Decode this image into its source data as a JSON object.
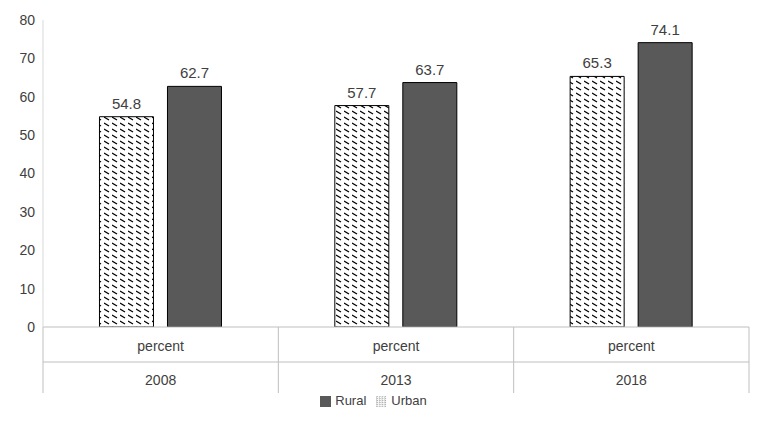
{
  "chart_data": {
    "type": "bar",
    "categories": [
      "2008",
      "2013",
      "2018"
    ],
    "sub_categories": [
      "percent",
      "percent",
      "percent"
    ],
    "series": [
      {
        "name": "Urban",
        "color": "#000000",
        "marker": "hatch",
        "values": [
          54.8,
          57.7,
          65.3
        ]
      },
      {
        "name": "Rural",
        "color": "#595959",
        "values": [
          62.7,
          63.7,
          74.1
        ]
      }
    ],
    "ylim": [
      0,
      80
    ],
    "yticks": [
      0,
      10,
      20,
      30,
      40,
      50,
      60,
      70,
      80
    ],
    "grid": false,
    "data_labels": true,
    "legend": "bottom"
  }
}
